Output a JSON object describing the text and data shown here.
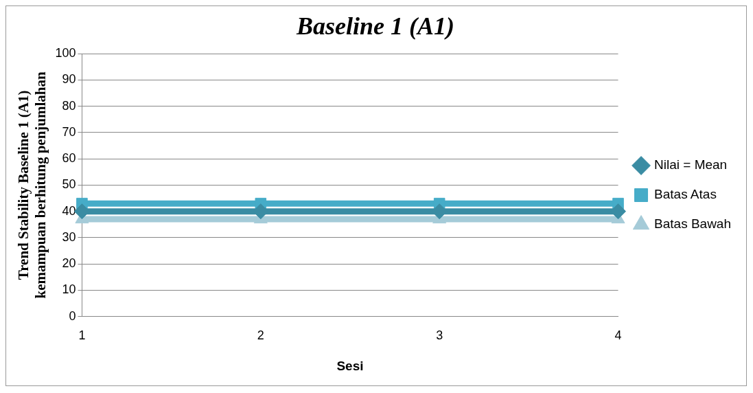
{
  "chart_data": {
    "type": "line",
    "title": "Baseline 1 (A1)",
    "xlabel": "Sesi",
    "ylabel": "Trend Stability Baseline 1 (A1)\nkemampuan berhitung penjumlahan",
    "categories": [
      "1",
      "2",
      "3",
      "4"
    ],
    "series": [
      {
        "name": "Nilai = Mean",
        "color": "#3a8ca3",
        "values": [
          40,
          40,
          40,
          40
        ],
        "marker": "diamond"
      },
      {
        "name": "Batas Atas",
        "color": "#46acc8",
        "values": [
          43,
          43,
          43,
          43
        ],
        "marker": "square"
      },
      {
        "name": "Batas Bawah",
        "color": "#a5cbd8",
        "values": [
          37,
          37,
          37,
          37
        ],
        "marker": "triangle"
      }
    ],
    "ylim": [
      0,
      100
    ],
    "yticks": [
      0,
      10,
      20,
      30,
      40,
      50,
      60,
      70,
      80,
      90,
      100
    ],
    "grid": "y",
    "legend": "right",
    "line_style": "solid"
  }
}
